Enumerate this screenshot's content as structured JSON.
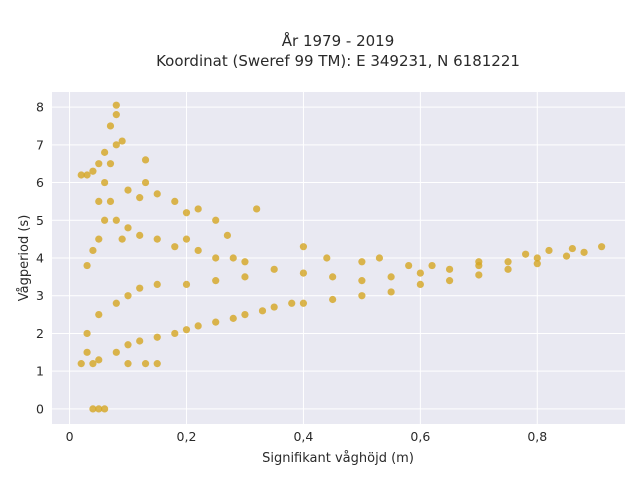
{
  "chart_data": {
    "type": "scatter",
    "title": "År 1979 - 2019",
    "subtitle": "Koordinat (Sweref 99 TM): E 349231, N 6181221",
    "xlabel": "Signifikant våghöjd (m)",
    "ylabel": "Vågperiod (s)",
    "xlim": [
      -0.03,
      0.95
    ],
    "ylim": [
      -0.4,
      8.4
    ],
    "x_ticks": [
      0,
      0.2,
      0.4,
      0.6,
      0.8
    ],
    "x_tick_labels": [
      "0",
      "0,2",
      "0,4",
      "0,6",
      "0,8"
    ],
    "y_ticks": [
      0,
      1,
      2,
      3,
      4,
      5,
      6,
      7,
      8
    ],
    "y_tick_labels": [
      "0",
      "1",
      "2",
      "3",
      "4",
      "5",
      "6",
      "7",
      "8"
    ],
    "grid": true,
    "legend": "none",
    "colors": {
      "marker": "#d4a520",
      "plot_bg": "#e9e9f2",
      "grid": "#ffffff"
    },
    "series": [
      {
        "points": [
          [
            0.02,
            1.2
          ],
          [
            0.03,
            1.5
          ],
          [
            0.05,
            1.3
          ],
          [
            0.08,
            1.5
          ],
          [
            0.1,
            1.7
          ],
          [
            0.12,
            1.8
          ],
          [
            0.15,
            1.9
          ],
          [
            0.18,
            2.0
          ],
          [
            0.2,
            2.1
          ],
          [
            0.22,
            2.2
          ],
          [
            0.25,
            2.3
          ],
          [
            0.28,
            2.4
          ],
          [
            0.3,
            2.5
          ],
          [
            0.33,
            2.6
          ],
          [
            0.35,
            2.7
          ],
          [
            0.38,
            2.8
          ],
          [
            0.4,
            2.8
          ],
          [
            0.45,
            2.9
          ],
          [
            0.5,
            3.0
          ],
          [
            0.55,
            3.1
          ],
          [
            0.6,
            3.3
          ],
          [
            0.65,
            3.4
          ],
          [
            0.7,
            3.55
          ],
          [
            0.75,
            3.7
          ],
          [
            0.8,
            3.85
          ],
          [
            0.85,
            4.05
          ],
          [
            0.88,
            4.15
          ],
          [
            0.91,
            4.3
          ],
          [
            0.03,
            2.0
          ],
          [
            0.05,
            2.5
          ],
          [
            0.08,
            2.8
          ],
          [
            0.1,
            3.0
          ],
          [
            0.12,
            3.2
          ],
          [
            0.15,
            3.3
          ],
          [
            0.2,
            3.3
          ],
          [
            0.25,
            3.4
          ],
          [
            0.3,
            3.5
          ],
          [
            0.35,
            3.7
          ],
          [
            0.4,
            3.6
          ],
          [
            0.45,
            3.5
          ],
          [
            0.5,
            3.4
          ],
          [
            0.55,
            3.5
          ],
          [
            0.6,
            3.6
          ],
          [
            0.65,
            3.7
          ],
          [
            0.7,
            3.8
          ],
          [
            0.75,
            3.9
          ],
          [
            0.8,
            4.0
          ],
          [
            0.03,
            3.8
          ],
          [
            0.04,
            4.2
          ],
          [
            0.05,
            4.5
          ],
          [
            0.06,
            5.0
          ],
          [
            0.07,
            5.5
          ],
          [
            0.08,
            5.0
          ],
          [
            0.09,
            4.5
          ],
          [
            0.1,
            4.8
          ],
          [
            0.12,
            4.6
          ],
          [
            0.15,
            4.5
          ],
          [
            0.18,
            4.3
          ],
          [
            0.2,
            4.5
          ],
          [
            0.22,
            4.2
          ],
          [
            0.25,
            4.0
          ],
          [
            0.28,
            4.0
          ],
          [
            0.3,
            3.9
          ],
          [
            0.05,
            5.5
          ],
          [
            0.06,
            6.0
          ],
          [
            0.07,
            6.5
          ],
          [
            0.08,
            7.0
          ],
          [
            0.08,
            7.8
          ],
          [
            0.07,
            7.5
          ],
          [
            0.06,
            6.8
          ],
          [
            0.05,
            6.5
          ],
          [
            0.03,
            6.2
          ],
          [
            0.09,
            7.1
          ],
          [
            0.1,
            5.8
          ],
          [
            0.12,
            5.6
          ],
          [
            0.13,
            6.0
          ],
          [
            0.15,
            5.7
          ],
          [
            0.18,
            5.5
          ],
          [
            0.2,
            5.2
          ],
          [
            0.22,
            5.3
          ],
          [
            0.25,
            5.0
          ],
          [
            0.27,
            4.6
          ],
          [
            0.32,
            5.3
          ],
          [
            0.13,
            6.6
          ],
          [
            0.04,
            0.0
          ],
          [
            0.05,
            0.0
          ],
          [
            0.06,
            0.0
          ],
          [
            0.04,
            1.2
          ],
          [
            0.1,
            1.2
          ],
          [
            0.13,
            1.2
          ],
          [
            0.15,
            1.2
          ],
          [
            0.4,
            4.3
          ],
          [
            0.44,
            4.0
          ],
          [
            0.5,
            3.9
          ],
          [
            0.53,
            4.0
          ],
          [
            0.58,
            3.8
          ],
          [
            0.62,
            3.8
          ],
          [
            0.7,
            3.9
          ],
          [
            0.78,
            4.1
          ],
          [
            0.82,
            4.2
          ],
          [
            0.86,
            4.25
          ],
          [
            0.02,
            6.2
          ],
          [
            0.04,
            6.3
          ],
          [
            0.08,
            8.05
          ]
        ]
      }
    ]
  }
}
